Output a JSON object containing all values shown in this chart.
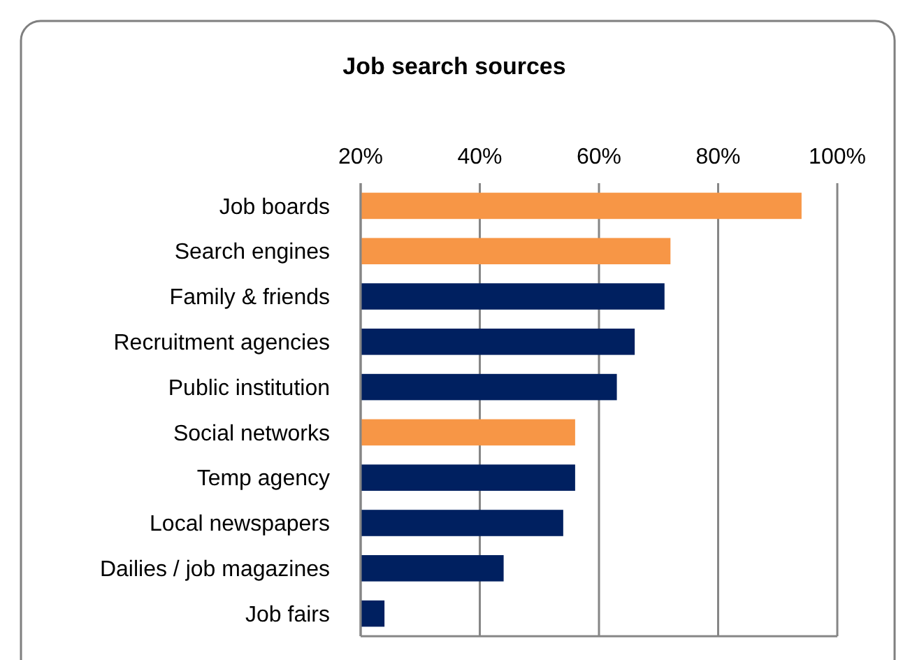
{
  "chart_data": {
    "type": "bar",
    "orientation": "horizontal",
    "title": "Job search sources",
    "categories": [
      "Job boards",
      "Search engines",
      "Family & friends",
      "Recruitment agencies",
      "Public institution",
      "Social networks",
      "Temp agency",
      "Local newspapers",
      "Dailies / job magazines",
      "Job fairs"
    ],
    "values": [
      94,
      72,
      71,
      66,
      63,
      56,
      56,
      54,
      44,
      24
    ],
    "colors": [
      "#f79646",
      "#f79646",
      "#002060",
      "#002060",
      "#002060",
      "#f79646",
      "#002060",
      "#002060",
      "#002060",
      "#002060"
    ],
    "xlim": [
      20,
      100
    ],
    "xticks": [
      {
        "value": 20,
        "label": "20%"
      },
      {
        "value": 40,
        "label": "40%"
      },
      {
        "value": 60,
        "label": "60%"
      },
      {
        "value": 80,
        "label": "80%"
      },
      {
        "value": 100,
        "label": "100%"
      }
    ],
    "grid": "x"
  }
}
